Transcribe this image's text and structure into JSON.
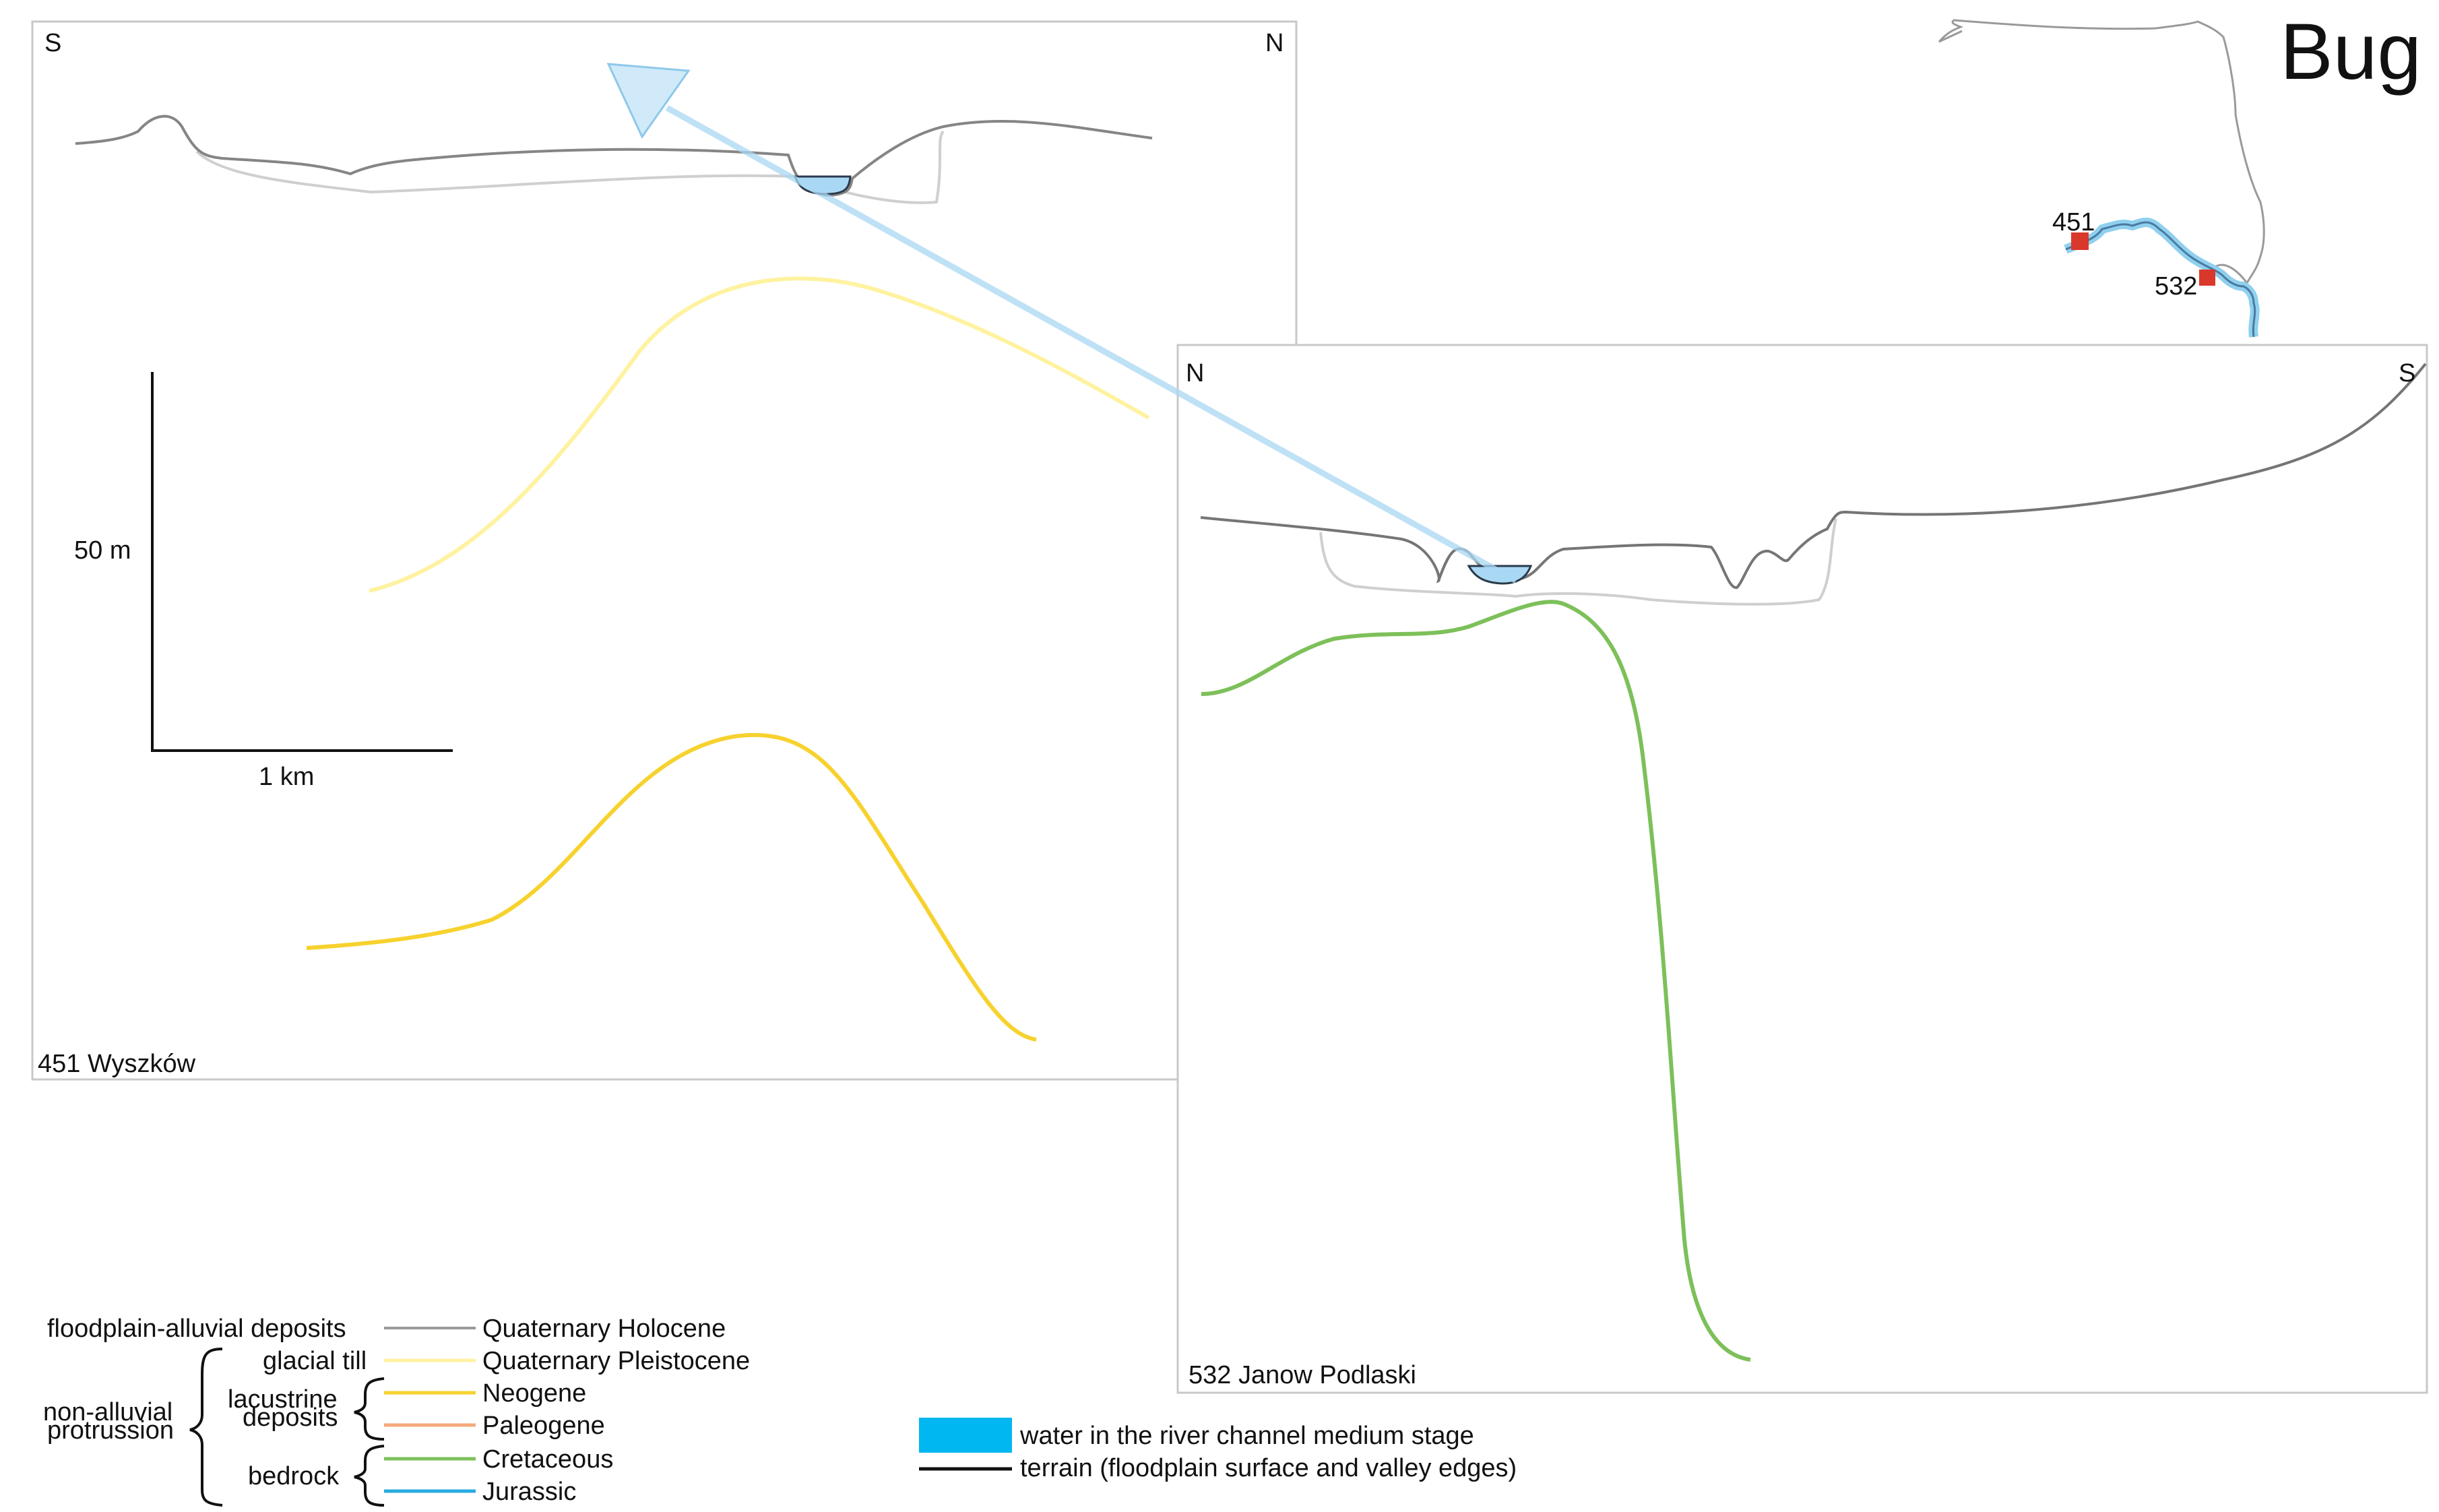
{
  "title": "Bug",
  "map": {
    "site_a": "451",
    "site_b": "532",
    "river_color": "#a8d8f0",
    "site_color": "#d9382b"
  },
  "section_451": {
    "name": "451 Wyszków",
    "left_dir": "S",
    "right_dir": "N"
  },
  "section_532": {
    "name": "532 Janow Podlaski",
    "left_dir": "N",
    "right_dir": "S"
  },
  "scale": {
    "vertical": "50 m",
    "horizontal": "1 km"
  },
  "legend": {
    "groups": {
      "floodplain": "floodplain-alluvial deposits",
      "non_alluvial_line1": "non-alluvial",
      "non_alluvial_line2": "protrussion",
      "glacial_till": "glacial till",
      "lacustrine_line1": "lacustrine",
      "lacustrine_line2": "deposits",
      "bedrock": "bedrock"
    },
    "layers": [
      {
        "label": "Quaternary Holocene",
        "color": "#999999"
      },
      {
        "label": "Quaternary Pleistocene",
        "color": "#fff2a0"
      },
      {
        "label": "Neogene",
        "color": "#f7d22e"
      },
      {
        "label": "Paleogene",
        "color": "#f4a97a"
      },
      {
        "label": "Cretaceous",
        "color": "#7dc05a"
      },
      {
        "label": "Jurassic",
        "color": "#29a9e0"
      }
    ],
    "water": {
      "label": "water in the river channel medium stage",
      "color": "#00b7f1"
    },
    "terrain": {
      "label": "terrain (floodplain surface and valley edges)",
      "color": "#111111"
    }
  }
}
